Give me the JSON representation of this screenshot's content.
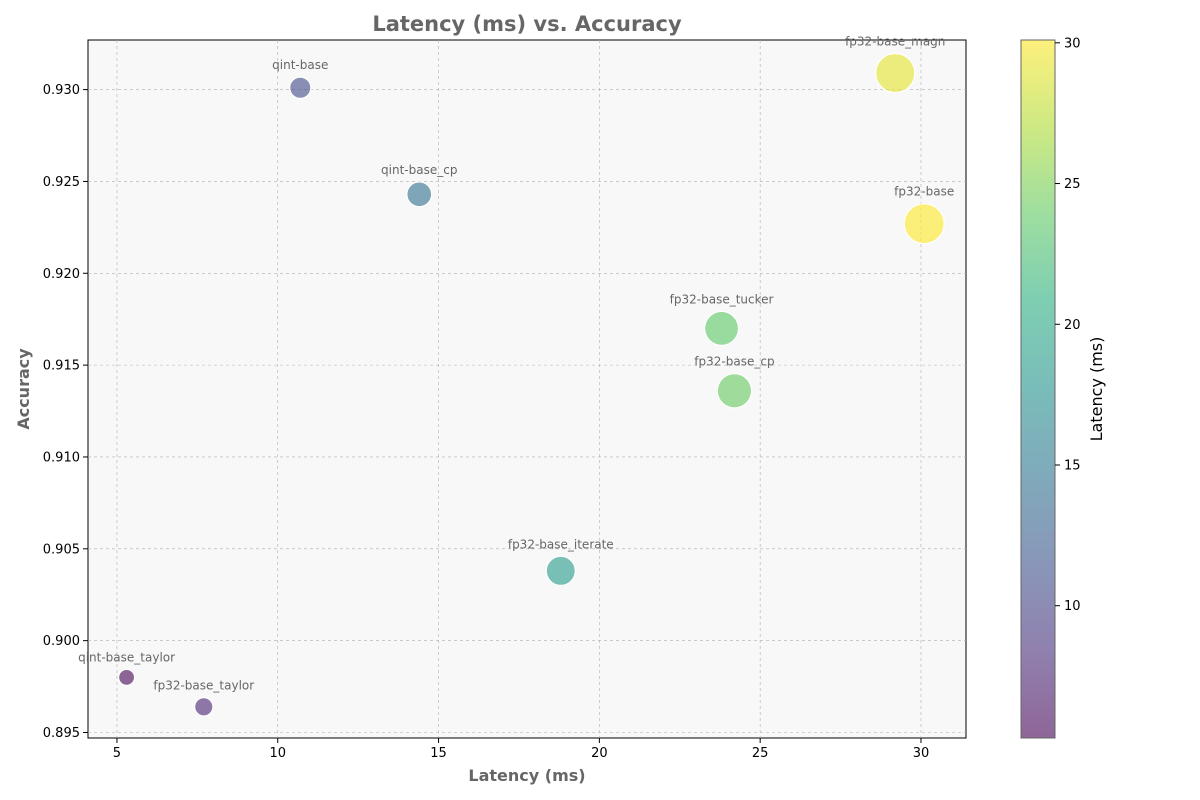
{
  "chart_data": {
    "type": "scatter",
    "title": "Latency (ms) vs. Accuracy",
    "xlabel": "Latency (ms)",
    "ylabel": "Accuracy",
    "xlim": [
      4.1,
      31.4
    ],
    "ylim": [
      0.8947,
      0.9327
    ],
    "x_ticks": [
      5,
      10,
      15,
      20,
      25,
      30
    ],
    "y_ticks": [
      0.895,
      0.9,
      0.905,
      0.91,
      0.915,
      0.92,
      0.925,
      0.93
    ],
    "grid": true,
    "colormap": "viridis",
    "colorbar": {
      "label": "Latency (ms)",
      "range": [
        5.3,
        30.1
      ],
      "ticks": [
        10,
        15,
        20,
        25,
        30
      ]
    },
    "size_encoding": "latency",
    "points": [
      {
        "label": "qint-base",
        "x": 10.7,
        "y": 0.9301
      },
      {
        "label": "fp32-base_magn",
        "x": 29.2,
        "y": 0.9309
      },
      {
        "label": "qint-base_cp",
        "x": 14.4,
        "y": 0.9243
      },
      {
        "label": "fp32-base",
        "x": 30.1,
        "y": 0.9227
      },
      {
        "label": "fp32-base_tucker",
        "x": 23.8,
        "y": 0.917
      },
      {
        "label": "fp32-base_cp",
        "x": 24.2,
        "y": 0.9136
      },
      {
        "label": "fp32-base_iterate",
        "x": 18.8,
        "y": 0.9038
      },
      {
        "label": "qint-base_taylor",
        "x": 5.3,
        "y": 0.898
      },
      {
        "label": "fp32-base_taylor",
        "x": 7.7,
        "y": 0.8964
      }
    ]
  }
}
